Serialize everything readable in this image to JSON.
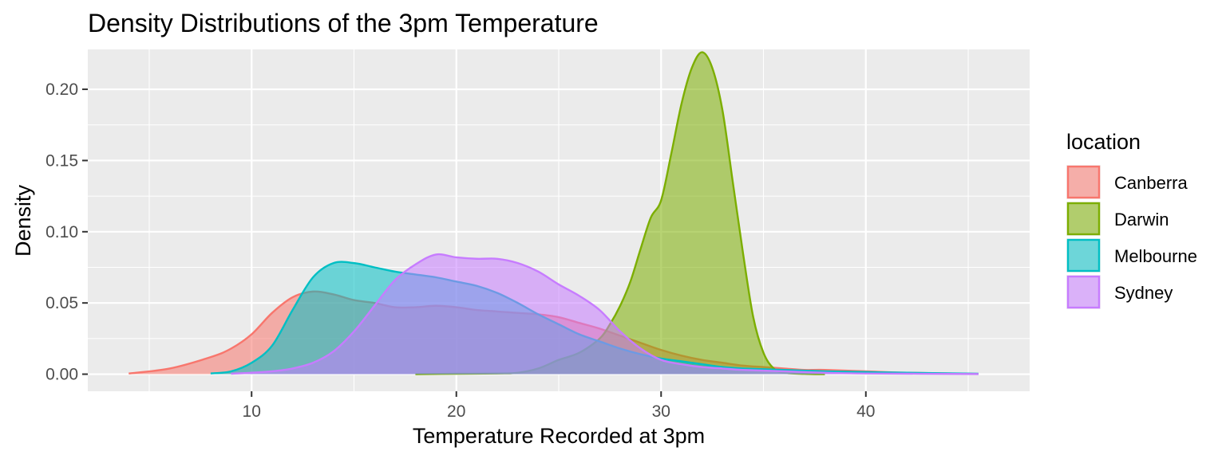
{
  "chart_data": {
    "type": "area",
    "title": "Density Distributions of the 3pm Temperature",
    "xlabel": "Temperature Recorded at 3pm",
    "ylabel": "Density",
    "xlim": [
      2,
      48
    ],
    "ylim": [
      -0.012,
      0.228
    ],
    "x_ticks": [
      10,
      20,
      30,
      40
    ],
    "x_tick_labels": [
      "10",
      "20",
      "30",
      "40"
    ],
    "y_ticks": [
      0.0,
      0.05,
      0.1,
      0.15,
      0.2
    ],
    "y_tick_labels": [
      "0.00",
      "0.05",
      "0.10",
      "0.15",
      "0.20"
    ],
    "grid": true,
    "legend": {
      "title": "location",
      "position": "right"
    },
    "series": [
      {
        "name": "Canberra",
        "color": "#F8766D",
        "x": [
          4,
          6,
          8,
          9,
          10,
          11,
          12,
          13,
          14,
          15,
          16,
          17,
          18,
          19,
          20,
          21,
          22,
          23,
          24,
          25,
          26,
          27,
          28,
          29,
          30,
          31,
          32,
          33,
          34,
          35,
          36,
          37,
          38,
          40,
          42,
          45.5
        ],
        "y": [
          0.0005,
          0.004,
          0.012,
          0.018,
          0.028,
          0.043,
          0.054,
          0.058,
          0.056,
          0.052,
          0.05,
          0.047,
          0.047,
          0.048,
          0.047,
          0.045,
          0.044,
          0.043,
          0.042,
          0.04,
          0.036,
          0.032,
          0.027,
          0.022,
          0.017,
          0.013,
          0.01,
          0.008,
          0.006,
          0.005,
          0.004,
          0.003,
          0.003,
          0.002,
          0.001,
          0.0002
        ]
      },
      {
        "name": "Darwin",
        "color": "#7CAE00",
        "x": [
          18,
          20,
          22,
          23,
          24,
          25,
          26,
          27,
          27.5,
          28,
          28.5,
          29,
          29.5,
          30,
          30.5,
          31,
          31.5,
          32,
          32.5,
          33,
          33.5,
          34,
          34.5,
          35,
          35.5,
          36,
          37,
          38
        ],
        "y": [
          0,
          0.0003,
          0.0005,
          0.001,
          0.004,
          0.01,
          0.015,
          0.025,
          0.035,
          0.048,
          0.065,
          0.088,
          0.11,
          0.122,
          0.155,
          0.19,
          0.215,
          0.226,
          0.215,
          0.185,
          0.135,
          0.085,
          0.04,
          0.015,
          0.004,
          0.001,
          0.0002,
          0
        ]
      },
      {
        "name": "Melbourne",
        "color": "#00BFC4",
        "x": [
          8,
          9,
          10,
          11,
          12,
          13,
          14,
          15,
          16,
          17,
          18,
          19,
          20,
          21,
          22,
          23,
          24,
          25,
          26,
          27,
          28,
          29,
          30,
          31,
          32,
          33,
          34,
          36,
          38,
          40,
          42,
          45.5
        ],
        "y": [
          0.0005,
          0.002,
          0.008,
          0.02,
          0.045,
          0.068,
          0.078,
          0.078,
          0.075,
          0.072,
          0.07,
          0.068,
          0.065,
          0.062,
          0.057,
          0.05,
          0.042,
          0.035,
          0.028,
          0.023,
          0.018,
          0.014,
          0.011,
          0.009,
          0.007,
          0.005,
          0.004,
          0.003,
          0.002,
          0.0015,
          0.001,
          0.0003
        ]
      },
      {
        "name": "Sydney",
        "color": "#C77CFF",
        "x": [
          9,
          10,
          11,
          12,
          13,
          14,
          15,
          16,
          17,
          18,
          19,
          20,
          21,
          22,
          23,
          24,
          25,
          26,
          27,
          28,
          29,
          30,
          31,
          32,
          33,
          34,
          36,
          38,
          40,
          45.5
        ],
        "y": [
          0.0003,
          0.001,
          0.002,
          0.004,
          0.008,
          0.016,
          0.03,
          0.048,
          0.066,
          0.077,
          0.084,
          0.082,
          0.081,
          0.081,
          0.078,
          0.072,
          0.063,
          0.055,
          0.045,
          0.03,
          0.018,
          0.01,
          0.007,
          0.005,
          0.004,
          0.003,
          0.002,
          0.001,
          0.0005,
          0.0001
        ]
      }
    ]
  }
}
